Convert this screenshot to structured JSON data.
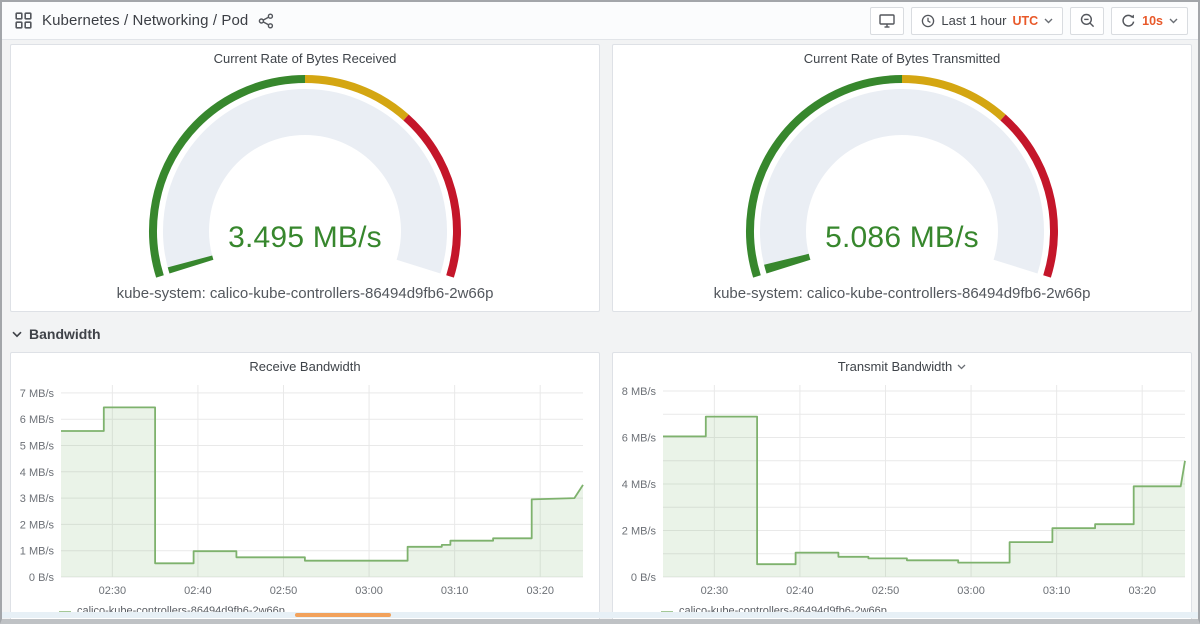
{
  "header": {
    "title": "Kubernetes / Networking / Pod",
    "time_range": "Last 1 hour",
    "timezone": "UTC",
    "refresh_interval": "10s"
  },
  "section": {
    "bandwidth": "Bandwidth"
  },
  "colors": {
    "accent_orange": "#E8592A",
    "gauge_green": "#37872D",
    "gauge_yellow": "#D4A612",
    "gauge_red": "#C4162A",
    "gauge_track": "#EAEEF4",
    "series_green": "#7EB26D"
  },
  "chart_data": [
    {
      "type": "gauge",
      "title": "Current Rate of Bytes Received",
      "value": 3.495,
      "unit": "MB/s",
      "display_value": "3.495 MB/s",
      "series_label": "kube-system: calico-kube-controllers-86494d9fb6-2w66p",
      "fill_fraction": 0.012,
      "fill_color": "#37872D",
      "segments": [
        {
          "from": 0,
          "to": 0.5,
          "color": "#37872D"
        },
        {
          "from": 0.5,
          "to": 0.694,
          "color": "#D4A612"
        },
        {
          "from": 0.694,
          "to": 1,
          "color": "#C4162A"
        }
      ]
    },
    {
      "type": "gauge",
      "title": "Current Rate of Bytes Transmitted",
      "value": 5.086,
      "unit": "MB/s",
      "display_value": "5.086 MB/s",
      "series_label": "kube-system: calico-kube-controllers-86494d9fb6-2w66p",
      "fill_fraction": 0.017,
      "fill_color": "#37872D",
      "segments": [
        {
          "from": 0,
          "to": 0.5,
          "color": "#37872D"
        },
        {
          "from": 0.5,
          "to": 0.694,
          "color": "#D4A612"
        },
        {
          "from": 0.694,
          "to": 1,
          "color": "#C4162A"
        }
      ]
    },
    {
      "type": "line",
      "title": "Receive Bandwidth",
      "legend": "calico-kube-controllers-86494d9fb6-2w66p",
      "color": "#7EB26D",
      "fill": "rgba(126,178,109,0.16)",
      "x_domain": [
        24,
        85
      ],
      "x_ticks": [
        {
          "m": 30,
          "label": "02:30"
        },
        {
          "m": 40,
          "label": "02:40"
        },
        {
          "m": 50,
          "label": "02:50"
        },
        {
          "m": 60,
          "label": "03:00"
        },
        {
          "m": 70,
          "label": "03:10"
        },
        {
          "m": 80,
          "label": "03:20"
        }
      ],
      "y_top": 7.3,
      "y_gridlines": [
        0,
        1,
        2,
        3,
        4,
        5,
        6,
        7
      ],
      "y_ticks": [
        {
          "v": 0,
          "label": "0 B/s"
        },
        {
          "v": 1,
          "label": "1 MB/s"
        },
        {
          "v": 2,
          "label": "2 MB/s"
        },
        {
          "v": 3,
          "label": "3 MB/s"
        },
        {
          "v": 4,
          "label": "4 MB/s"
        },
        {
          "v": 5,
          "label": "5 MB/s"
        },
        {
          "v": 6,
          "label": "6 MB/s"
        },
        {
          "v": 7,
          "label": "7 MB/s"
        }
      ],
      "points": [
        [
          24,
          5.55
        ],
        [
          29,
          5.55
        ],
        [
          29,
          6.45
        ],
        [
          35,
          6.45
        ],
        [
          35,
          0.52
        ],
        [
          39.5,
          0.52
        ],
        [
          39.5,
          0.98
        ],
        [
          44.5,
          0.98
        ],
        [
          44.5,
          0.75
        ],
        [
          52.5,
          0.75
        ],
        [
          52.5,
          0.62
        ],
        [
          64.5,
          0.62
        ],
        [
          64.5,
          1.15
        ],
        [
          68.5,
          1.15
        ],
        [
          68.5,
          1.22
        ],
        [
          69.5,
          1.22
        ],
        [
          69.5,
          1.38
        ],
        [
          74.5,
          1.38
        ],
        [
          74.5,
          1.47
        ],
        [
          79,
          1.47
        ],
        [
          79,
          2.95
        ],
        [
          84,
          3.0
        ],
        [
          85,
          3.5
        ]
      ]
    },
    {
      "type": "line",
      "title": "Transmit Bandwidth",
      "legend": "calico-kube-controllers-86494d9fb6-2w66p",
      "color": "#7EB26D",
      "fill": "rgba(126,178,109,0.16)",
      "x_domain": [
        24,
        85
      ],
      "x_ticks": [
        {
          "m": 30,
          "label": "02:30"
        },
        {
          "m": 40,
          "label": "02:40"
        },
        {
          "m": 50,
          "label": "02:50"
        },
        {
          "m": 60,
          "label": "03:00"
        },
        {
          "m": 70,
          "label": "03:10"
        },
        {
          "m": 80,
          "label": "03:20"
        }
      ],
      "y_top": 8.26,
      "y_gridlines": [
        0,
        1,
        2,
        3,
        4,
        5,
        6,
        7,
        8
      ],
      "y_ticks": [
        {
          "v": 0,
          "label": "0 B/s"
        },
        {
          "v": 2,
          "label": "2 MB/s"
        },
        {
          "v": 4,
          "label": "4 MB/s"
        },
        {
          "v": 6,
          "label": "6 MB/s"
        },
        {
          "v": 8,
          "label": "8 MB/s"
        }
      ],
      "points": [
        [
          24,
          6.05
        ],
        [
          29,
          6.05
        ],
        [
          29,
          6.9
        ],
        [
          35,
          6.9
        ],
        [
          35,
          0.55
        ],
        [
          39.5,
          0.55
        ],
        [
          39.5,
          1.05
        ],
        [
          44.5,
          1.05
        ],
        [
          44.5,
          0.87
        ],
        [
          48,
          0.87
        ],
        [
          48,
          0.8
        ],
        [
          52.5,
          0.8
        ],
        [
          52.5,
          0.72
        ],
        [
          58.5,
          0.72
        ],
        [
          58.5,
          0.62
        ],
        [
          64.5,
          0.62
        ],
        [
          64.5,
          1.5
        ],
        [
          69.5,
          1.5
        ],
        [
          69.5,
          2.1
        ],
        [
          74.5,
          2.1
        ],
        [
          74.5,
          2.27
        ],
        [
          79,
          2.27
        ],
        [
          79,
          3.9
        ],
        [
          84.5,
          3.9
        ],
        [
          85,
          5.0
        ]
      ]
    }
  ]
}
